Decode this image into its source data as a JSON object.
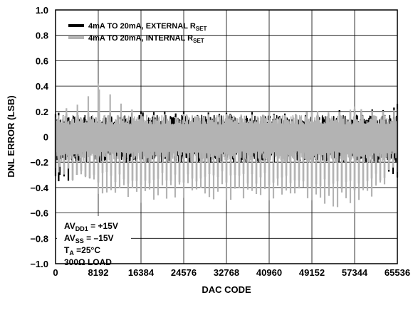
{
  "chart_data": {
    "type": "line",
    "title": "",
    "xlabel": "DAC CODE",
    "ylabel": "DNL ERROR (LSB)",
    "xlim": [
      0,
      65536
    ],
    "ylim": [
      -1.0,
      1.0
    ],
    "grid": true,
    "x_ticks": [
      0,
      8192,
      16384,
      24576,
      32768,
      40960,
      49152,
      57344,
      65536
    ],
    "x_tick_labels": [
      "0",
      "8192",
      "16384",
      "24576",
      "32768",
      "40960",
      "49152",
      "57344",
      "65536"
    ],
    "y_ticks": [
      -1.0,
      -0.8,
      -0.6,
      -0.4,
      -0.2,
      0,
      0.2,
      0.4,
      0.6,
      0.8,
      1.0
    ],
    "y_tick_labels": [
      "−1.0",
      "−0.8",
      "−0.6",
      "−0.4",
      "−0.2",
      "0",
      "0.2",
      "0.4",
      "0.6",
      "0.8",
      "1.0"
    ],
    "legend_position": "top-left",
    "series": [
      {
        "name": "4mA TO 20mA, EXTERNAL R",
        "name_sub": "SET",
        "color": "#000000",
        "envelope": {
          "x": [
            0,
            8192,
            16384,
            24576,
            32768,
            40960,
            49152,
            57344,
            65536
          ],
          "upper": [
            0.19,
            0.2,
            0.2,
            0.2,
            0.19,
            0.2,
            0.2,
            0.22,
            0.26
          ],
          "lower": [
            -0.35,
            -0.36,
            -0.38,
            -0.36,
            -0.36,
            -0.38,
            -0.4,
            -0.42,
            -0.32
          ]
        }
      },
      {
        "name": "4mA TO 20mA, INTERNAL R",
        "name_sub": "SET",
        "color": "#b3b3b3",
        "envelope": {
          "x": [
            0,
            8192,
            16384,
            24576,
            32768,
            40960,
            49152,
            57344,
            65536
          ],
          "upper": [
            0.17,
            0.42,
            0.18,
            0.18,
            0.18,
            0.2,
            0.2,
            0.24,
            0.22
          ],
          "lower": [
            -0.28,
            -0.45,
            -0.52,
            -0.48,
            -0.5,
            -0.5,
            -0.5,
            -0.6,
            -0.28
          ]
        }
      }
    ],
    "annotation": {
      "lines": [
        {
          "main": "AV",
          "sub": "DD1",
          "rest": " = +15V"
        },
        {
          "main": "AV",
          "sub": "SS",
          "rest": " = –15V"
        },
        {
          "main": "T",
          "sub": "A",
          "rest": " =25°C"
        },
        {
          "main": "300Ω LOAD",
          "sub": "",
          "rest": ""
        }
      ]
    }
  }
}
